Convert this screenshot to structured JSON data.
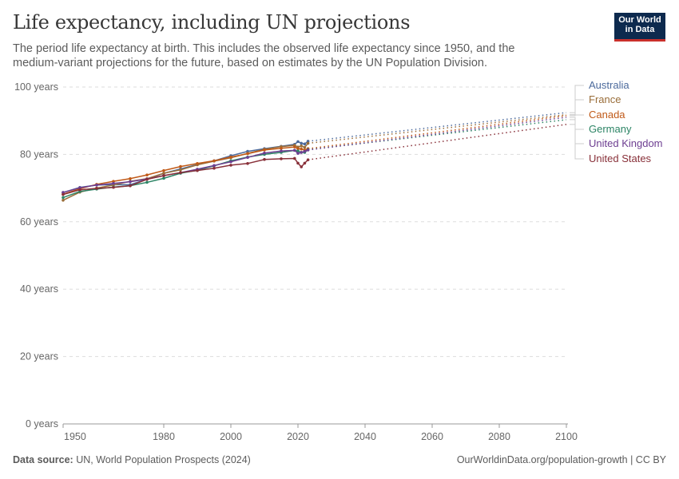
{
  "header": {
    "title": "Life expectancy, including UN projections",
    "subtitle": "The period life expectancy at birth. This includes the observed life expectancy since 1950, and the medium-variant projections for the future, based on estimates by the UN Population Division.",
    "logo": "Our World in Data"
  },
  "footer": {
    "source_label": "Data source:",
    "source": "UN, World Population Prospects (2024)",
    "right": "OurWorldinData.org/population-growth | CC BY"
  },
  "chart_data": {
    "type": "line",
    "title": "Life expectancy, including UN projections",
    "xlabel": "",
    "ylabel": "",
    "xlim": [
      1950,
      2100
    ],
    "ylim": [
      0,
      100
    ],
    "grid": "horizontal dashed",
    "legend": "right",
    "x_ticks": [
      "1950",
      "1980",
      "2000",
      "2020",
      "2040",
      "2060",
      "2080",
      "2100"
    ],
    "y_ticks": [
      "0 years",
      "20 years",
      "40 years",
      "60 years",
      "80 years",
      "100 years"
    ],
    "observed_x": [
      1950,
      1955,
      1960,
      1965,
      1970,
      1975,
      1980,
      1985,
      1990,
      1995,
      2000,
      2005,
      2010,
      2015,
      2019,
      2020,
      2021,
      2022,
      2023
    ],
    "projection_x": [
      2023,
      2100
    ],
    "series": [
      {
        "name": "Australia",
        "color": "#4c6a9c",
        "observed": [
          68.7,
          70.2,
          70.9,
          71.0,
          71.0,
          72.6,
          74.4,
          75.7,
          77.0,
          78.1,
          79.6,
          80.9,
          81.7,
          82.4,
          83.0,
          83.8,
          83.3,
          83.1,
          83.9
        ],
        "projection": [
          83.9,
          92.4
        ]
      },
      {
        "name": "France",
        "color": "#996d39",
        "observed": [
          66.4,
          68.8,
          70.0,
          70.9,
          72.0,
          72.8,
          74.4,
          75.4,
          76.9,
          78.0,
          79.0,
          80.3,
          81.5,
          82.3,
          82.7,
          82.2,
          82.5,
          82.1,
          83.3
        ],
        "projection": [
          83.3,
          91.8
        ]
      },
      {
        "name": "Canada",
        "color": "#c05917",
        "observed": [
          68.2,
          69.8,
          71.1,
          72.0,
          72.8,
          73.9,
          75.2,
          76.4,
          77.3,
          78.1,
          79.2,
          80.2,
          81.3,
          81.8,
          82.2,
          81.7,
          81.6,
          81.3,
          81.7
        ],
        "projection": [
          81.7,
          91.5
        ]
      },
      {
        "name": "Germany",
        "color": "#2c8465",
        "observed": [
          67.2,
          69.0,
          69.7,
          70.3,
          70.7,
          71.7,
          72.9,
          74.4,
          75.3,
          76.6,
          78.1,
          79.2,
          80.0,
          80.6,
          81.2,
          81.0,
          80.6,
          80.6,
          81.4
        ],
        "projection": [
          81.4,
          90.3
        ]
      },
      {
        "name": "United Kingdom",
        "color": "#6d3e91",
        "observed": [
          68.7,
          70.1,
          70.9,
          71.4,
          71.9,
          72.7,
          73.7,
          74.6,
          75.6,
          76.7,
          77.8,
          79.1,
          80.4,
          81.0,
          81.2,
          80.3,
          80.6,
          80.9,
          81.3
        ],
        "projection": [
          81.3,
          91.0
        ]
      },
      {
        "name": "United States",
        "color": "#883039",
        "observed": [
          68.1,
          69.5,
          69.9,
          70.2,
          70.7,
          72.6,
          73.7,
          74.6,
          75.2,
          75.9,
          76.8,
          77.3,
          78.5,
          78.7,
          78.8,
          77.4,
          76.3,
          77.4,
          78.4
        ],
        "projection": [
          78.4,
          88.9
        ]
      }
    ]
  }
}
